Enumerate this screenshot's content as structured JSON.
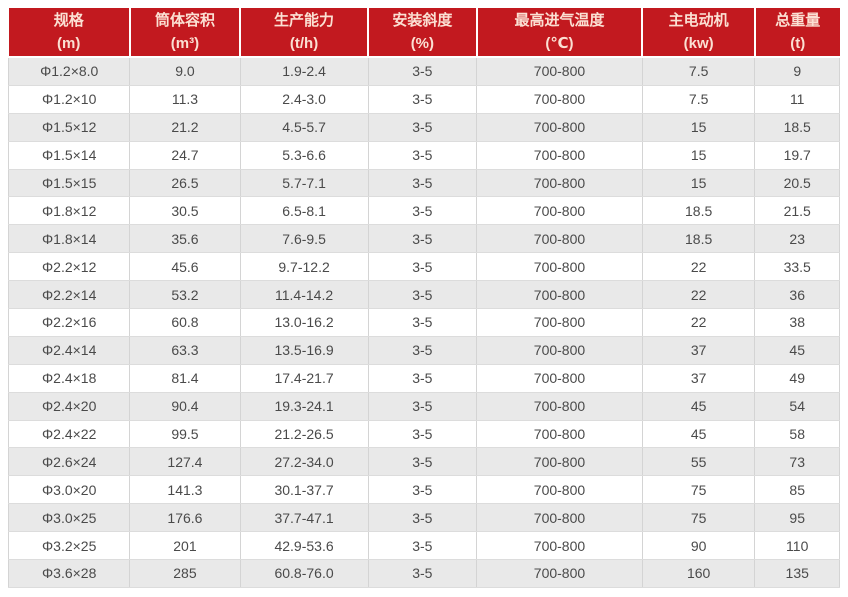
{
  "theme": {
    "header_bg": "#c2191f",
    "header_text": "#fbe0d3",
    "row_alt_bg": "#e9e9e9",
    "row_bg": "#ffffff",
    "text_color": "#4a4a4a",
    "border_color": "#d4d4d4"
  },
  "table": {
    "columns": [
      {
        "title": "规格",
        "unit": "(m)"
      },
      {
        "title": "筒体容积",
        "unit": "(m³)"
      },
      {
        "title": "生产能力",
        "unit": "(t/h)"
      },
      {
        "title": "安装斜度",
        "unit": "(%)"
      },
      {
        "title": "最高进气温度",
        "unit": "(℃)"
      },
      {
        "title": "主电动机",
        "unit": "(kw)"
      },
      {
        "title": "总重量",
        "unit": "(t)"
      }
    ],
    "rows": [
      [
        "Φ1.2×8.0",
        "9.0",
        "1.9-2.4",
        "3-5",
        "700-800",
        "7.5",
        "9"
      ],
      [
        "Φ1.2×10",
        "11.3",
        "2.4-3.0",
        "3-5",
        "700-800",
        "7.5",
        "11"
      ],
      [
        "Φ1.5×12",
        "21.2",
        "4.5-5.7",
        "3-5",
        "700-800",
        "15",
        "18.5"
      ],
      [
        "Φ1.5×14",
        "24.7",
        "5.3-6.6",
        "3-5",
        "700-800",
        "15",
        "19.7"
      ],
      [
        "Φ1.5×15",
        "26.5",
        "5.7-7.1",
        "3-5",
        "700-800",
        "15",
        "20.5"
      ],
      [
        "Φ1.8×12",
        "30.5",
        "6.5-8.1",
        "3-5",
        "700-800",
        "18.5",
        "21.5"
      ],
      [
        "Φ1.8×14",
        "35.6",
        "7.6-9.5",
        "3-5",
        "700-800",
        "18.5",
        "23"
      ],
      [
        "Φ2.2×12",
        "45.6",
        "9.7-12.2",
        "3-5",
        "700-800",
        "22",
        "33.5"
      ],
      [
        "Φ2.2×14",
        "53.2",
        "11.4-14.2",
        "3-5",
        "700-800",
        "22",
        "36"
      ],
      [
        "Φ2.2×16",
        "60.8",
        "13.0-16.2",
        "3-5",
        "700-800",
        "22",
        "38"
      ],
      [
        "Φ2.4×14",
        "63.3",
        "13.5-16.9",
        "3-5",
        "700-800",
        "37",
        "45"
      ],
      [
        "Φ2.4×18",
        "81.4",
        "17.4-21.7",
        "3-5",
        "700-800",
        "37",
        "49"
      ],
      [
        "Φ2.4×20",
        "90.4",
        "19.3-24.1",
        "3-5",
        "700-800",
        "45",
        "54"
      ],
      [
        "Φ2.4×22",
        "99.5",
        "21.2-26.5",
        "3-5",
        "700-800",
        "45",
        "58"
      ],
      [
        "Φ2.6×24",
        "127.4",
        "27.2-34.0",
        "3-5",
        "700-800",
        "55",
        "73"
      ],
      [
        "Φ3.0×20",
        "141.3",
        "30.1-37.7",
        "3-5",
        "700-800",
        "75",
        "85"
      ],
      [
        "Φ3.0×25",
        "176.6",
        "37.7-47.1",
        "3-5",
        "700-800",
        "75",
        "95"
      ],
      [
        "Φ3.2×25",
        "201",
        "42.9-53.6",
        "3-5",
        "700-800",
        "90",
        "110"
      ],
      [
        "Φ3.6×28",
        "285",
        "60.8-76.0",
        "3-5",
        "700-800",
        "160",
        "135"
      ]
    ]
  }
}
